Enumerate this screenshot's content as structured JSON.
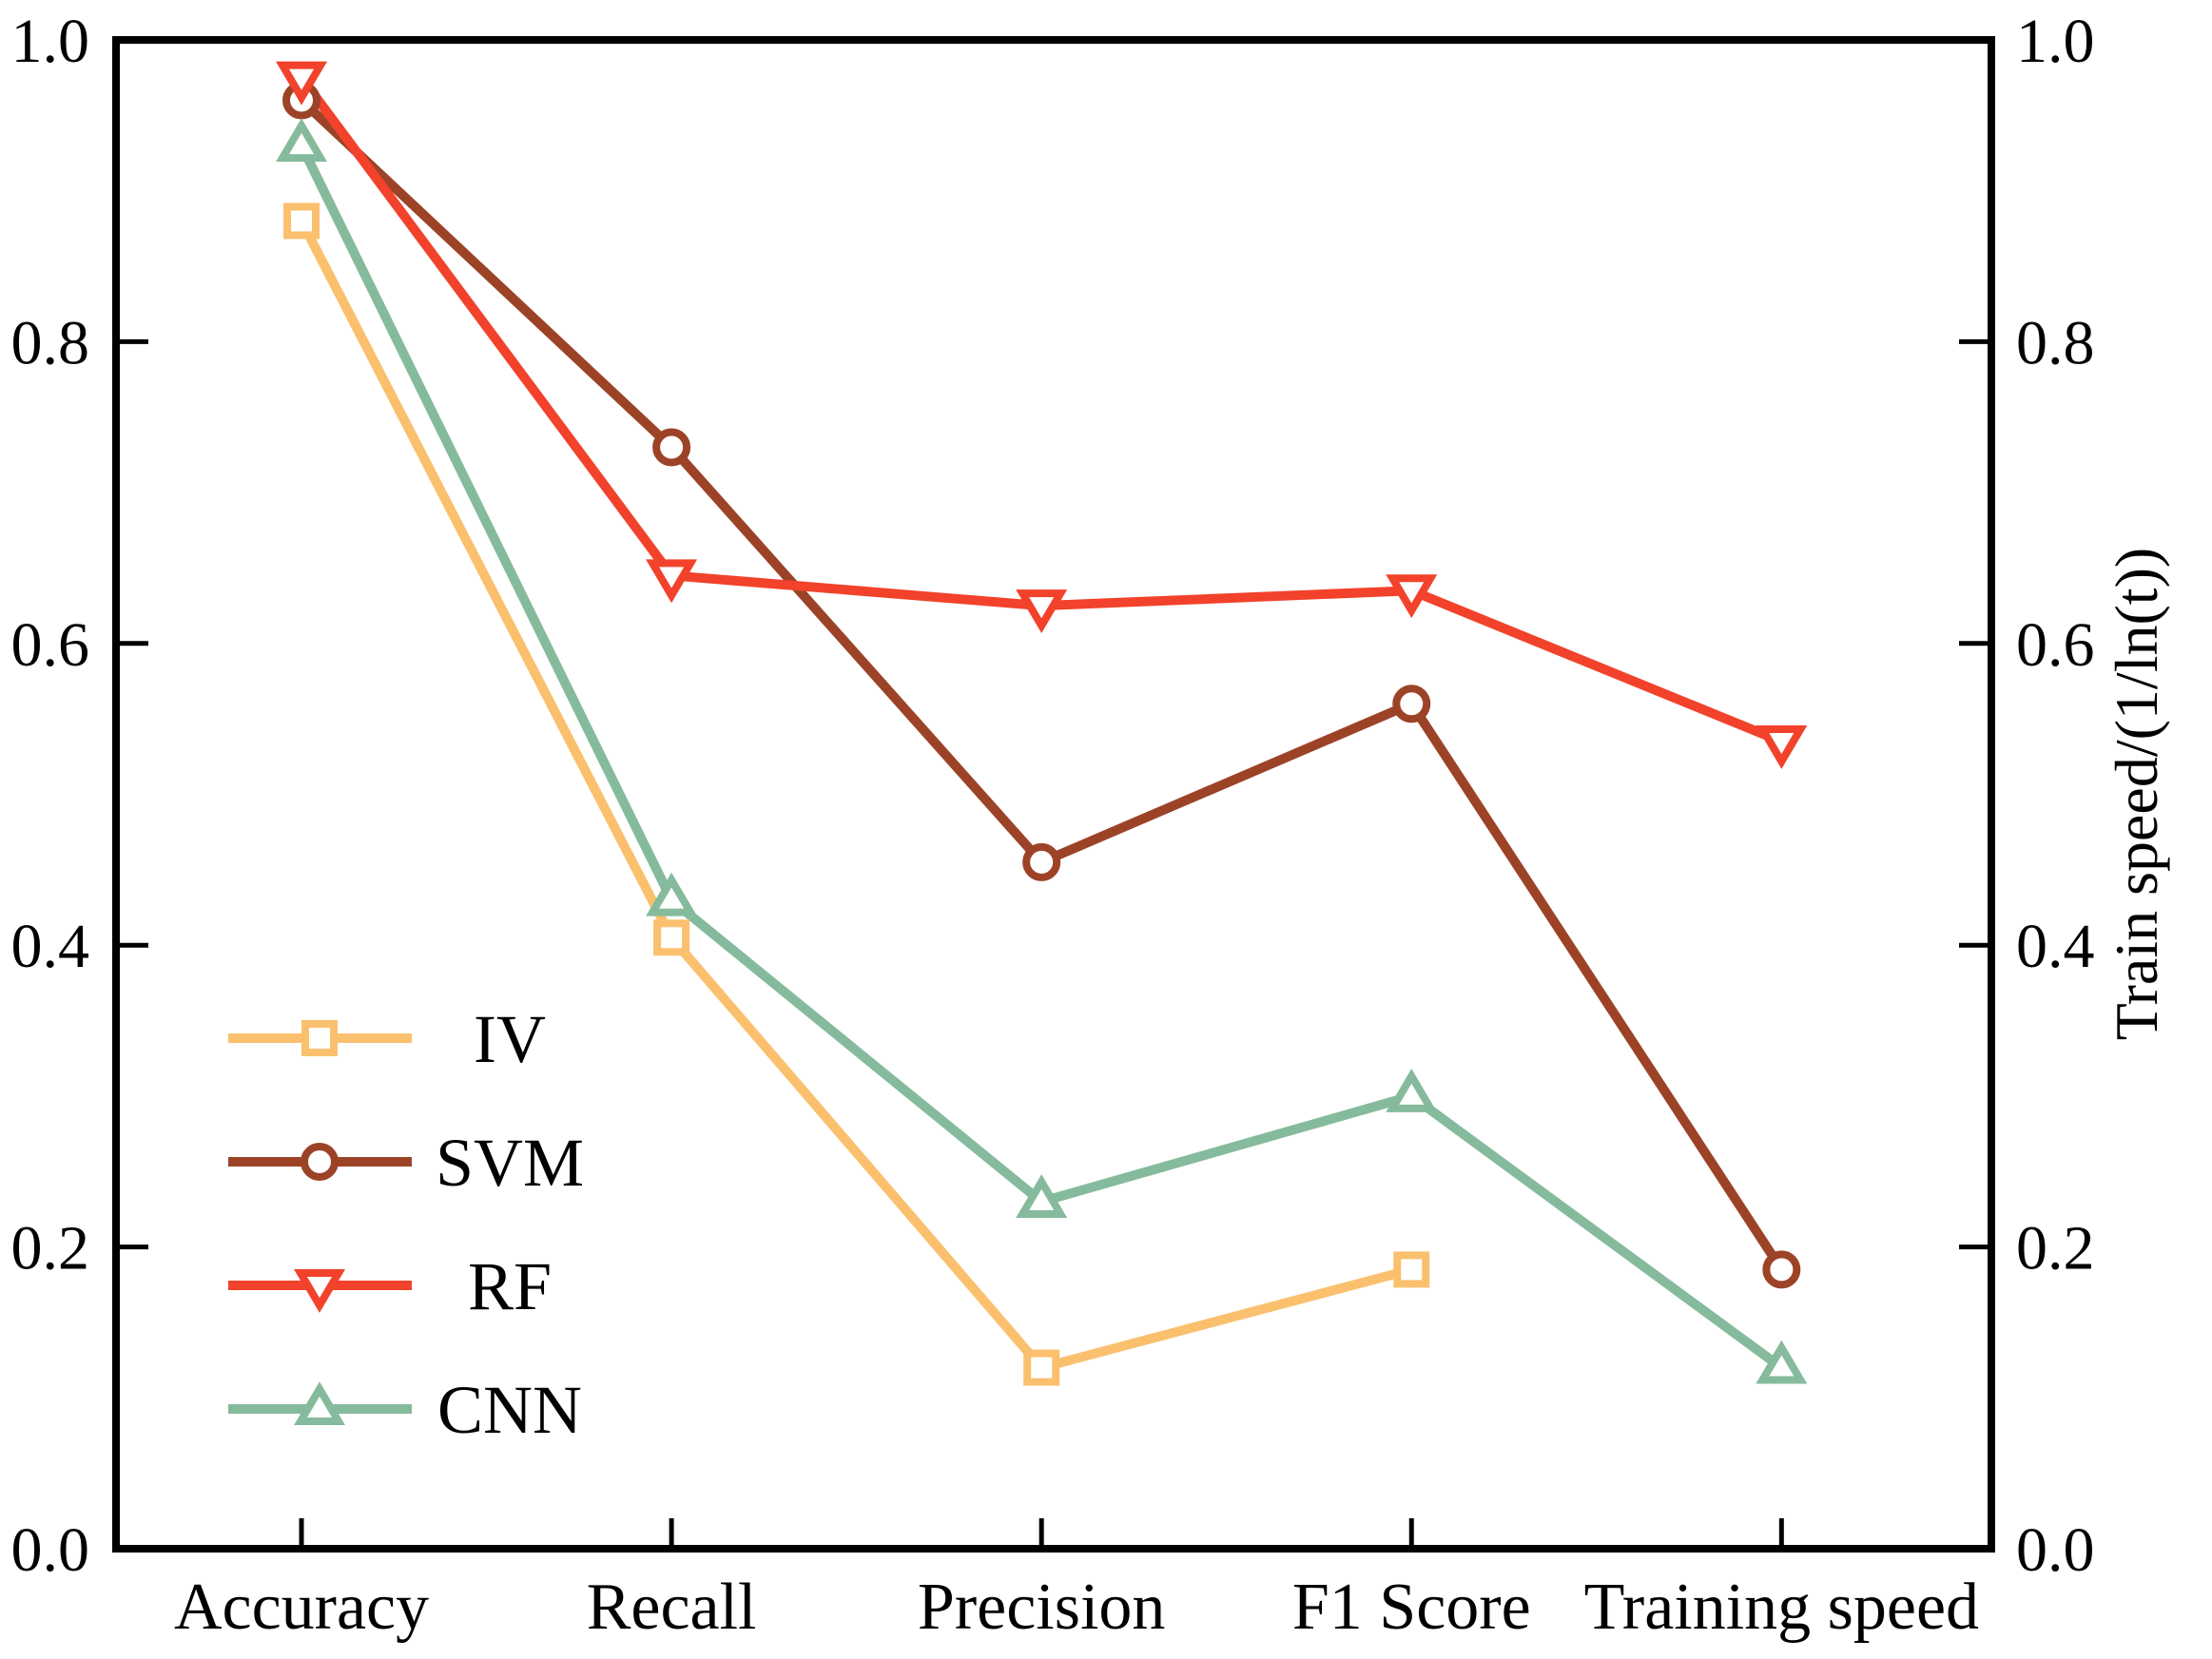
{
  "chart_data": {
    "type": "line",
    "title": "",
    "categories": [
      "Accuracy",
      "Recall",
      "Precision",
      "F1 Score",
      "Training speed"
    ],
    "series": [
      {
        "name": "IV",
        "color": "#FAC06E",
        "marker": "square",
        "values": [
          0.88,
          0.405,
          0.12,
          0.185,
          null
        ]
      },
      {
        "name": "SVM",
        "color": "#9C4327",
        "marker": "circle",
        "values": [
          0.96,
          0.73,
          0.455,
          0.56,
          0.185
        ]
      },
      {
        "name": "RF",
        "color": "#F2422B",
        "marker": "triangle-down",
        "values": [
          0.975,
          0.645,
          0.625,
          0.635,
          0.535
        ]
      },
      {
        "name": "CNN",
        "color": "#85BB9C",
        "marker": "triangle-up",
        "values": [
          0.93,
          0.43,
          0.23,
          0.3,
          0.12
        ]
      }
    ],
    "left_axis": {
      "min": 0.0,
      "max": 1.0,
      "ticks": [
        "0.0",
        "0.2",
        "0.4",
        "0.6",
        "0.8",
        "1.0"
      ],
      "label": ""
    },
    "right_axis": {
      "min": 0.0,
      "max": 1.0,
      "ticks": [
        "0.0",
        "0.2",
        "0.4",
        "0.6",
        "0.8",
        "1.0"
      ],
      "label": "Train speed/(1/ln(t))"
    },
    "legend": {
      "entries": [
        "IV",
        "SVM",
        "RF",
        "CNN"
      ],
      "position": "lower-left"
    },
    "grid": false,
    "line_color_axis": "#000000",
    "text_color": "#000000"
  }
}
